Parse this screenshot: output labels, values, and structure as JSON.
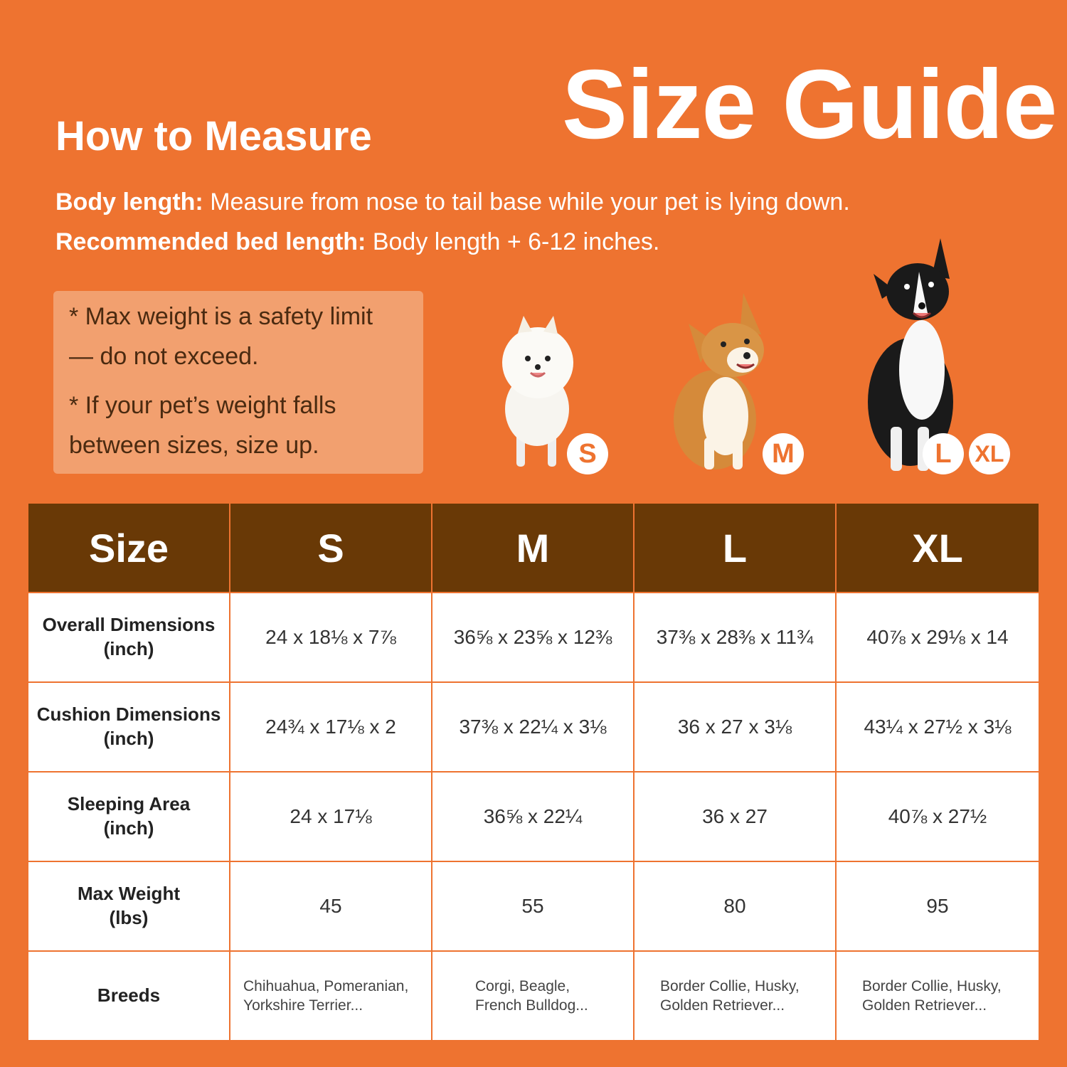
{
  "title": "Size Guide",
  "how_to_measure": {
    "heading": "How to Measure",
    "body_label": "Body length:",
    "body_text": " Measure from nose to tail base while your pet is lying down.",
    "rec_label": "Recommended bed length:",
    "rec_text": " Body length + 6-12 inches."
  },
  "notes": [
    "* Max weight is a safety limit",
    "— do not exceed.",
    "* If your pet’s weight falls",
    "between sizes, size up."
  ],
  "badges": [
    "S",
    "M",
    "L",
    "XL"
  ],
  "colors": {
    "background": "#EE7330",
    "header": "#693906",
    "note_box": "#F2A06F"
  },
  "table": {
    "headers": [
      "Size",
      "S",
      "M",
      "L",
      "XL"
    ],
    "rows": [
      {
        "label": "Overall Dimensions",
        "unit": "(inch)",
        "values": [
          "24 x 18⅛ x 7⅞",
          "36⅝ x 23⅝ x 12⅜",
          "37⅜ x 28⅜ x 11¾",
          "40⅞ x 29⅛ x 14"
        ]
      },
      {
        "label": "Cushion Dimensions",
        "unit": "(inch)",
        "values": [
          "24¾ x 17⅛ x 2",
          "37⅜ x 22¼ x 3⅛",
          "36 x 27 x 3⅛",
          "43¼ x 27½ x 3⅛"
        ]
      },
      {
        "label": "Sleeping Area",
        "unit": "(inch)",
        "values": [
          "24 x 17⅛",
          "36⅝ x 22¼",
          "36 x 27",
          "40⅞ x 27½"
        ]
      },
      {
        "label": "Max Weight",
        "unit": "(lbs)",
        "values": [
          "45",
          "55",
          "80",
          "95"
        ]
      }
    ],
    "breeds": {
      "label": "Breeds",
      "values": [
        [
          "Chihuahua, Pomeranian,",
          "Yorkshire Terrier..."
        ],
        [
          "Corgi, Beagle,",
          "French Bulldog..."
        ],
        [
          "Border Collie, Husky,",
          "Golden Retriever..."
        ],
        [
          "Border Collie, Husky,",
          "Golden Retriever..."
        ]
      ]
    }
  }
}
